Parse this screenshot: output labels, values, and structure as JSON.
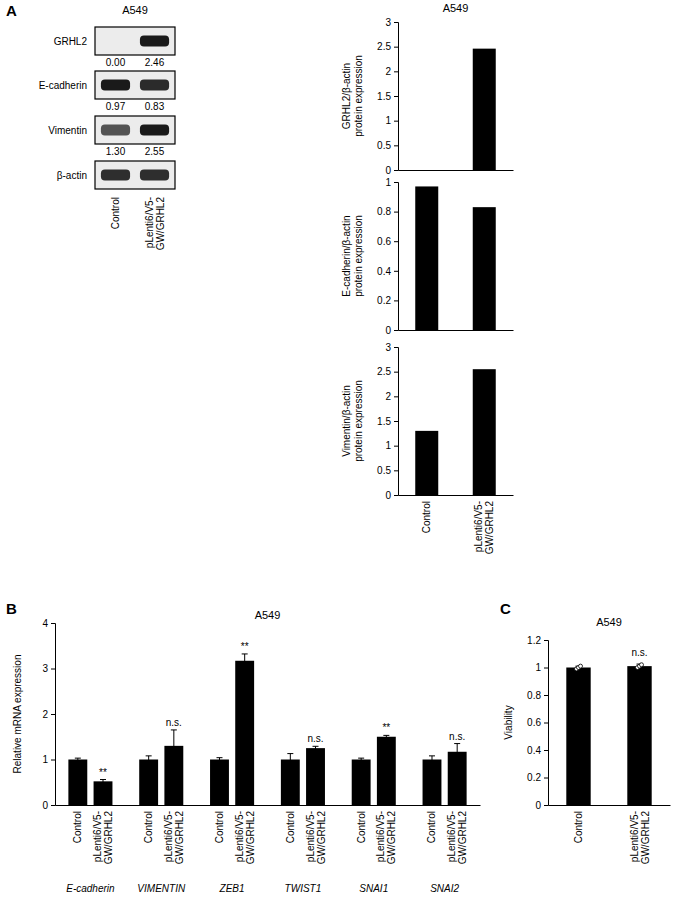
{
  "chart_data": [
    {
      "type": "blot",
      "panel": "A",
      "title": "A549",
      "categories": [
        "Control",
        "pLenti6/V5-GW/GRHL2"
      ],
      "rows": [
        {
          "name": "GRHL2",
          "values": [
            0,
            2.46
          ],
          "value_labels": [
            "0.00",
            "2.46"
          ]
        },
        {
          "name": "E-cadherin",
          "values": [
            0.97,
            0.83
          ],
          "value_labels": [
            "0.97",
            "0.83"
          ]
        },
        {
          "name": "Vimentin",
          "values": [
            1.3,
            2.55
          ],
          "value_labels": [
            "1.30",
            "2.55"
          ]
        },
        {
          "name": "β-actin"
        }
      ]
    },
    {
      "type": "bar",
      "title": "A549",
      "ylabel": [
        "GRHL2/β-actin",
        "protein expression"
      ],
      "categories": [
        null,
        null
      ],
      "values": [
        0,
        2.46
      ],
      "color": "#000000",
      "ylim": [
        0,
        3
      ],
      "yticks": [
        0,
        0.5,
        1,
        1.5,
        2,
        2.5,
        3
      ]
    },
    {
      "type": "bar",
      "ylabel": [
        "E-cadherin/β-actin",
        "protein expression"
      ],
      "categories": [
        null,
        null
      ],
      "values": [
        0.97,
        0.83
      ],
      "color": "#000000",
      "ylim": [
        0,
        1
      ],
      "yticks": [
        0,
        0.2,
        0.4,
        0.6,
        0.8,
        1
      ]
    },
    {
      "type": "bar",
      "ylabel": [
        "Vimentin/β-actin",
        "protein expression"
      ],
      "categories": [
        "Control",
        "pLenti6/V5-GW/GRHL2"
      ],
      "values": [
        1.3,
        2.55
      ],
      "color": "#000000",
      "ylim": [
        0,
        3
      ],
      "yticks": [
        0,
        0.5,
        1,
        1.5,
        2,
        2.5,
        3
      ]
    },
    {
      "type": "grouped_bar",
      "panel": "B",
      "title": "A549",
      "ylabel": "Relative mRNA expression",
      "categories": [
        "E-cadherin",
        "VIMENTIN",
        "ZEB1",
        "TWIST1",
        "SNAI1",
        "SNAI2"
      ],
      "series": [
        {
          "name": "Control",
          "color": "#000000",
          "values": [
            1,
            1,
            1,
            1,
            1,
            1
          ],
          "errors": [
            0.03,
            0.08,
            0.04,
            0.13,
            0.03,
            0.08
          ]
        },
        {
          "name": "pLenti6/V5-GW/GRHL2",
          "color": "#000000",
          "values": [
            0.52,
            1.3,
            3.17,
            1.25,
            1.5,
            1.17
          ],
          "errors": [
            0.04,
            0.35,
            0.15,
            0.04,
            0.03,
            0.18
          ],
          "annotations": [
            "**",
            "n.s.",
            "**",
            "n.s.",
            "**",
            "n.s."
          ]
        }
      ],
      "ylim": [
        0,
        4
      ],
      "yticks": [
        0,
        1,
        2,
        3,
        4
      ]
    },
    {
      "type": "bar",
      "panel": "C",
      "title": "A549",
      "ylabel": "Viability",
      "categories": [
        "Control",
        "pLenti6/V5-GW/GRHL2"
      ],
      "values": [
        1,
        1.01
      ],
      "errors": [
        0.01,
        0.015
      ],
      "points": [
        [
          0.99,
          1,
          1.01
        ],
        [
          1,
          1.01,
          1.02
        ]
      ],
      "annotations": [
        null,
        "n.s."
      ],
      "color": "#000000",
      "ylim": [
        0,
        1.2
      ],
      "yticks": [
        0,
        0.2,
        0.4,
        0.6,
        0.8,
        1,
        1.2
      ]
    }
  ]
}
